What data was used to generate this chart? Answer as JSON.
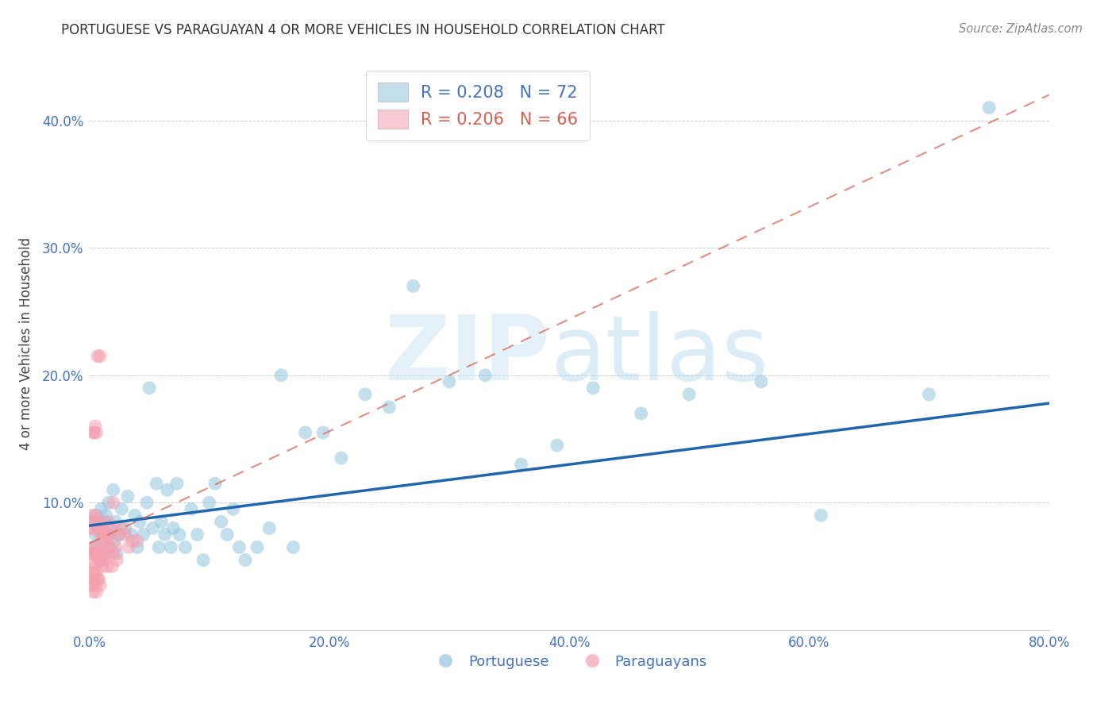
{
  "title": "PORTUGUESE VS PARAGUAYAN 4 OR MORE VEHICLES IN HOUSEHOLD CORRELATION CHART",
  "source": "Source: ZipAtlas.com",
  "ylabel": "4 or more Vehicles in Household",
  "xlabel_portuguese": "Portuguese",
  "xlabel_paraguayan": "Paraguayans",
  "xlim": [
    0.0,
    0.8
  ],
  "ylim": [
    0.0,
    0.45
  ],
  "blue_color": "#92c5de",
  "pink_color": "#f4a0b0",
  "line_blue_color": "#2166ac",
  "line_pink_color": "#d6604d",
  "background_color": "#ffffff",
  "grid_color": "#cccccc",
  "title_color": "#333333",
  "source_color": "#888888",
  "tick_color": "#4472c4",
  "legend_blue_text_color": "#4472c4",
  "legend_pink_text_color": "#d6604d",
  "legend_r_blue": "R = 0.208",
  "legend_n_blue": "N = 72",
  "legend_r_pink": "R = 0.206",
  "legend_n_pink": "N = 66",
  "port_x": [
    0.003,
    0.005,
    0.006,
    0.007,
    0.008,
    0.009,
    0.01,
    0.011,
    0.012,
    0.013,
    0.014,
    0.015,
    0.016,
    0.017,
    0.018,
    0.02,
    0.021,
    0.022,
    0.023,
    0.025,
    0.027,
    0.03,
    0.032,
    0.035,
    0.038,
    0.04,
    0.042,
    0.045,
    0.048,
    0.05,
    0.053,
    0.056,
    0.058,
    0.06,
    0.063,
    0.065,
    0.068,
    0.07,
    0.073,
    0.075,
    0.08,
    0.085,
    0.09,
    0.095,
    0.1,
    0.105,
    0.11,
    0.115,
    0.12,
    0.125,
    0.13,
    0.14,
    0.15,
    0.16,
    0.17,
    0.18,
    0.195,
    0.21,
    0.23,
    0.25,
    0.27,
    0.3,
    0.33,
    0.36,
    0.39,
    0.42,
    0.46,
    0.5,
    0.56,
    0.61,
    0.7,
    0.75
  ],
  "port_y": [
    0.085,
    0.075,
    0.09,
    0.065,
    0.08,
    0.055,
    0.095,
    0.07,
    0.085,
    0.06,
    0.09,
    0.075,
    0.1,
    0.065,
    0.08,
    0.11,
    0.07,
    0.085,
    0.06,
    0.075,
    0.095,
    0.08,
    0.105,
    0.075,
    0.09,
    0.065,
    0.085,
    0.075,
    0.1,
    0.19,
    0.08,
    0.115,
    0.065,
    0.085,
    0.075,
    0.11,
    0.065,
    0.08,
    0.115,
    0.075,
    0.065,
    0.095,
    0.075,
    0.055,
    0.1,
    0.115,
    0.085,
    0.075,
    0.095,
    0.065,
    0.055,
    0.065,
    0.08,
    0.2,
    0.065,
    0.155,
    0.155,
    0.135,
    0.185,
    0.175,
    0.27,
    0.195,
    0.2,
    0.13,
    0.145,
    0.19,
    0.17,
    0.185,
    0.195,
    0.09,
    0.185,
    0.41
  ],
  "para_x": [
    0.001,
    0.001,
    0.001,
    0.002,
    0.002,
    0.002,
    0.002,
    0.003,
    0.003,
    0.003,
    0.003,
    0.004,
    0.004,
    0.004,
    0.005,
    0.005,
    0.005,
    0.005,
    0.006,
    0.006,
    0.006,
    0.006,
    0.007,
    0.007,
    0.007,
    0.008,
    0.008,
    0.008,
    0.009,
    0.009,
    0.009,
    0.01,
    0.01,
    0.011,
    0.011,
    0.012,
    0.012,
    0.013,
    0.014,
    0.015,
    0.015,
    0.016,
    0.017,
    0.018,
    0.019,
    0.02,
    0.021,
    0.022,
    0.023,
    0.025,
    0.027,
    0.03,
    0.033,
    0.036,
    0.04,
    0.008,
    0.01,
    0.012,
    0.015,
    0.02,
    0.005,
    0.007,
    0.009,
    0.003,
    0.004,
    0.006
  ],
  "para_y": [
    0.08,
    0.06,
    0.04,
    0.09,
    0.065,
    0.05,
    0.035,
    0.08,
    0.06,
    0.045,
    0.03,
    0.085,
    0.06,
    0.04,
    0.09,
    0.065,
    0.05,
    0.035,
    0.085,
    0.06,
    0.045,
    0.03,
    0.08,
    0.06,
    0.04,
    0.085,
    0.06,
    0.04,
    0.075,
    0.055,
    0.035,
    0.08,
    0.055,
    0.075,
    0.05,
    0.08,
    0.055,
    0.065,
    0.075,
    0.06,
    0.05,
    0.085,
    0.065,
    0.075,
    0.05,
    0.1,
    0.08,
    0.065,
    0.055,
    0.075,
    0.08,
    0.075,
    0.065,
    0.07,
    0.07,
    0.06,
    0.06,
    0.07,
    0.07,
    0.06,
    0.16,
    0.215,
    0.215,
    0.155,
    0.155,
    0.155
  ],
  "blue_line_x0": 0.0,
  "blue_line_y0": 0.082,
  "blue_line_x1": 0.8,
  "blue_line_y1": 0.178,
  "pink_line_x0": 0.0,
  "pink_line_y0": 0.068,
  "pink_line_x1": 0.8,
  "pink_line_y1": 0.42
}
